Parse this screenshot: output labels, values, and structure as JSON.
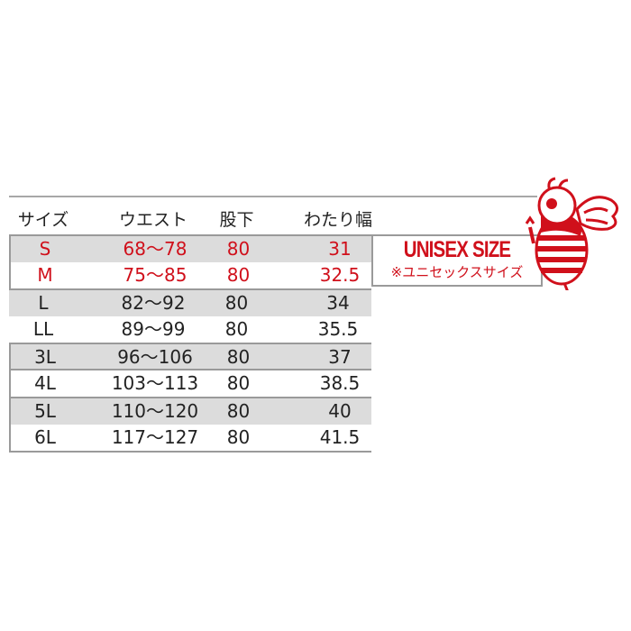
{
  "headers": [
    "サイズ",
    "ウエスト",
    "股下",
    "わたり幅"
  ],
  "rows": [
    {
      "size": "S",
      "waist": "68〜78",
      "inseam": "80",
      "thigh": "31"
    },
    {
      "size": "M",
      "waist": "75〜85",
      "inseam": "80",
      "thigh": "32.5"
    },
    {
      "size": "L",
      "waist": "82〜92",
      "inseam": "80",
      "thigh": "34"
    },
    {
      "size": "LL",
      "waist": "89〜99",
      "inseam": "80",
      "thigh": "35.5"
    },
    {
      "size": "3L",
      "waist": "96〜106",
      "inseam": "80",
      "thigh": "37"
    },
    {
      "size": "4L",
      "waist": "103〜113",
      "inseam": "80",
      "thigh": "38.5"
    },
    {
      "size": "5L",
      "waist": "110〜120",
      "inseam": "80",
      "thigh": "40"
    },
    {
      "size": "6L",
      "waist": "117〜127",
      "inseam": "80",
      "thigh": "41.5"
    }
  ],
  "unisex": {
    "title": "UNISEX SIZE",
    "subtitle": "※ユニセックスサイズ"
  },
  "colors": {
    "accent": "#d0101b",
    "row_gray": "#dcdcdc"
  },
  "mascot": "bee-mascot-icon"
}
